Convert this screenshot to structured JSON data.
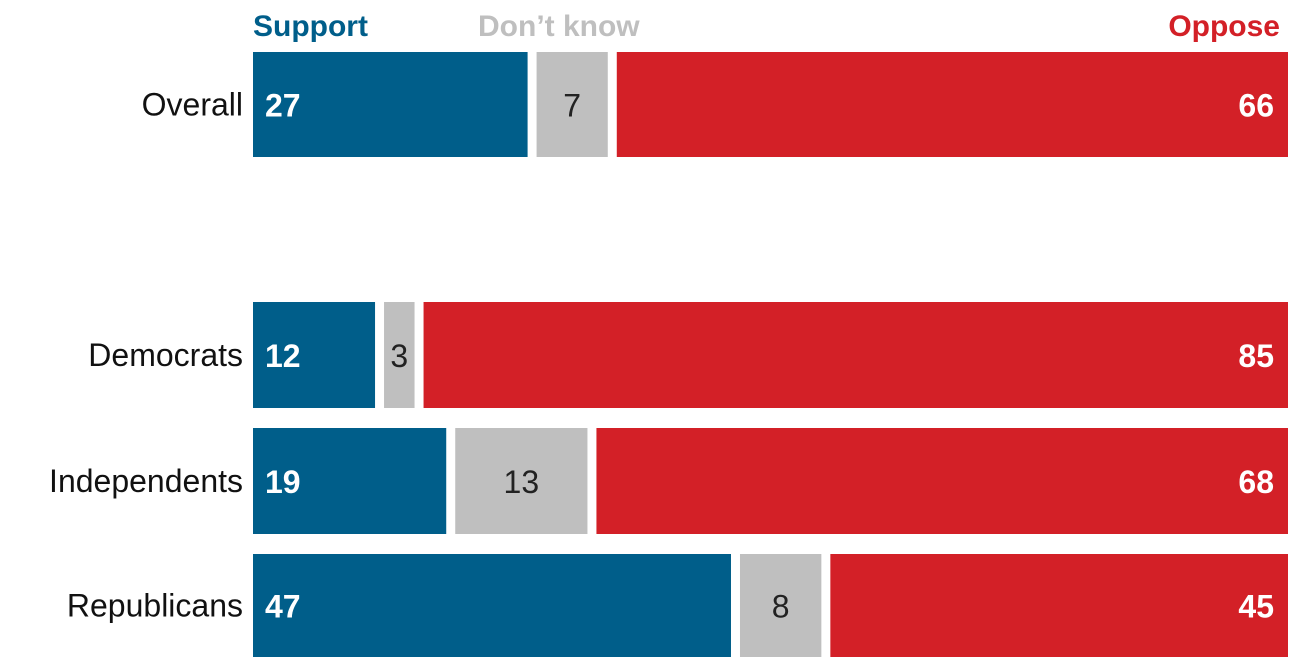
{
  "chart_data": {
    "type": "bar",
    "orientation": "horizontal",
    "stacked": true,
    "categories": [
      "Overall",
      "Democrats",
      "Independents",
      "Republicans"
    ],
    "series": [
      {
        "name": "Support",
        "color": "#005e8a",
        "values": [
          27,
          12,
          19,
          47
        ]
      },
      {
        "name": "Don’t know",
        "color": "#bfbfbf",
        "values": [
          7,
          3,
          13,
          8
        ]
      },
      {
        "name": "Oppose",
        "color": "#d32027",
        "values": [
          66,
          85,
          68,
          45
        ]
      }
    ],
    "value_label_colors": [
      "#ffffff",
      "#222222",
      "#ffffff"
    ],
    "xlim": [
      0,
      100
    ],
    "legend_position": "top",
    "grid": false,
    "title": "",
    "xlabel": "",
    "ylabel": ""
  }
}
